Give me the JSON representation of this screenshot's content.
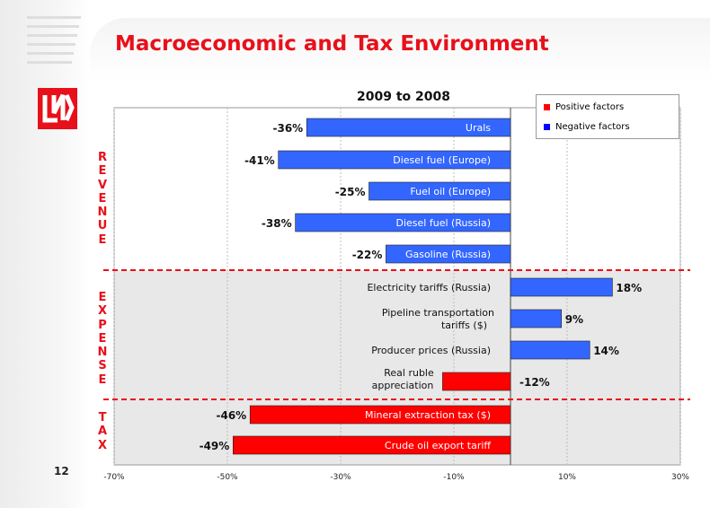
{
  "slide": {
    "title": "Macroeconomic and Tax Environment",
    "page_number": "12",
    "logo_icon": "lukoil-logo-icon",
    "accent_color": "#e8101a"
  },
  "sections": [
    {
      "id": "revenue",
      "letters": [
        "R",
        "E",
        "V",
        "E",
        "N",
        "U",
        "E"
      ]
    },
    {
      "id": "expense",
      "letters": [
        "E",
        "X",
        "P",
        "E",
        "N",
        "S",
        "E"
      ]
    },
    {
      "id": "tax",
      "letters": [
        "T",
        "A",
        "X"
      ]
    }
  ],
  "legend": [
    {
      "label": "Positive factors",
      "color": "#ff0000"
    },
    {
      "label": "Negative factors",
      "color": "#0000ff"
    }
  ],
  "chart_data": {
    "type": "bar",
    "orientation": "horizontal",
    "title": "2009 to 2008",
    "xlim": [
      -70,
      30
    ],
    "x_ticks": [
      "-70%",
      "-50%",
      "-30%",
      "-10%",
      "10%",
      "30%"
    ],
    "grid": true,
    "legend_position": "top-right",
    "categories": [
      "Urals",
      "Diesel fuel (Europe)",
      "Fuel oil (Europe)",
      "Diesel fuel (Russia)",
      "Gasoline (Russia)",
      "Electricity tariffs (Russia)",
      "Pipeline transportation tariffs ($)",
      "Producer prices (Russia)",
      "Real ruble appreciation",
      "Mineral extraction tax ($)",
      "Crude oil export tariff"
    ],
    "values": [
      -36,
      -41,
      -25,
      -38,
      -22,
      18,
      9,
      14,
      -12,
      -46,
      -49
    ],
    "value_labels": [
      "-36%",
      "-41%",
      "-25%",
      "-38%",
      "-22%",
      "18%",
      "9%",
      "14%",
      "-12%",
      "-46%",
      "-49%"
    ],
    "factor": [
      "negative",
      "negative",
      "negative",
      "negative",
      "negative",
      "negative",
      "negative",
      "negative",
      "positive",
      "positive",
      "positive"
    ],
    "colors": {
      "positive": "#ff0000",
      "negative": "#3366ff"
    }
  }
}
